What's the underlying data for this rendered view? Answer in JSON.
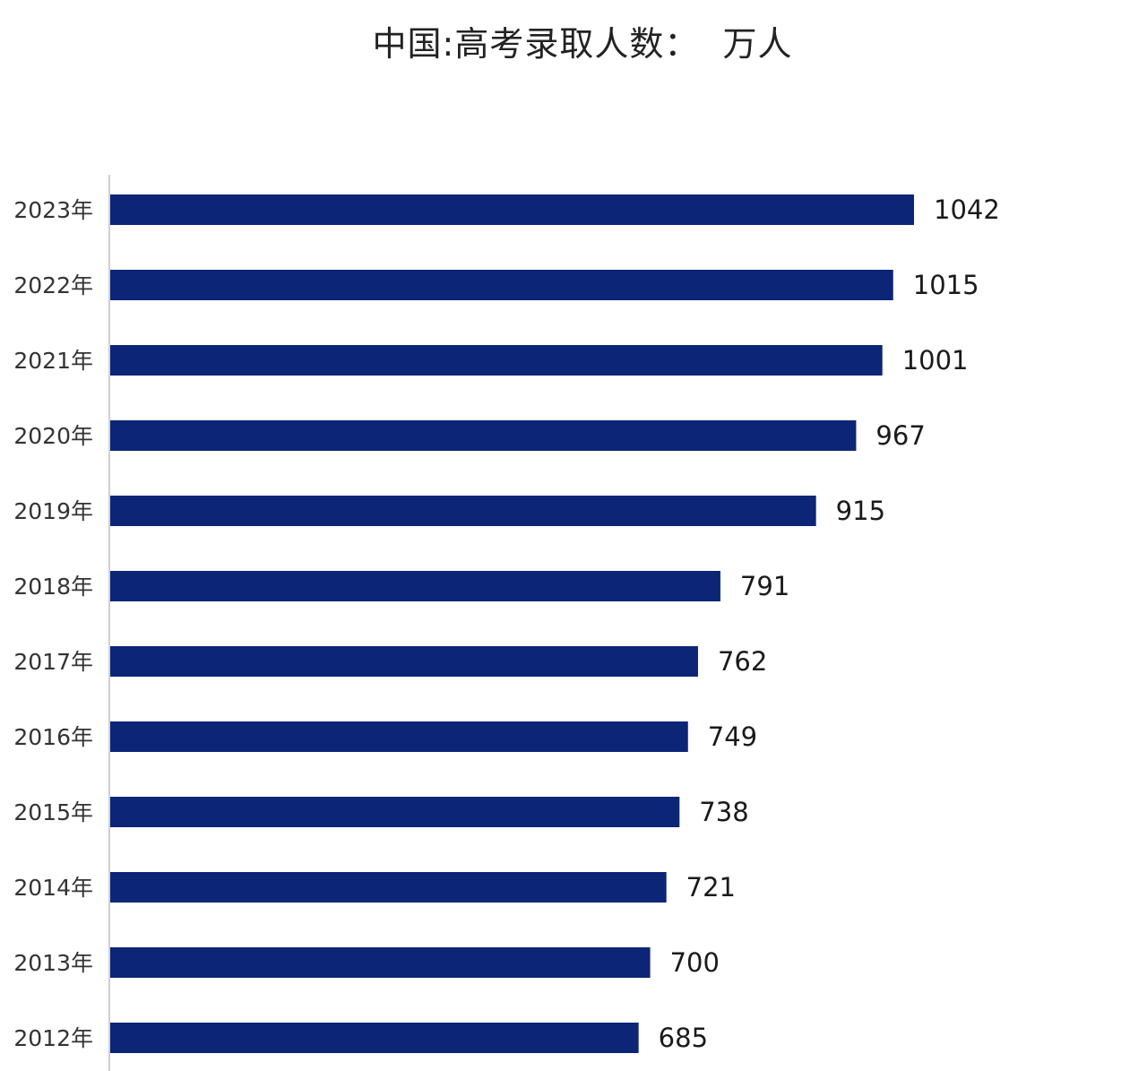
{
  "chart_data": {
    "type": "bar",
    "orientation": "horizontal",
    "title": "中国:高考录取人数：  万人",
    "xlabel": "",
    "ylabel": "",
    "categories": [
      "2023年",
      "2022年",
      "2021年",
      "2020年",
      "2019年",
      "2018年",
      "2017年",
      "2016年",
      "2015年",
      "2014年",
      "2013年",
      "2012年"
    ],
    "values": [
      1042,
      1015,
      1001,
      967,
      915,
      791,
      762,
      749,
      738,
      721,
      700,
      685
    ],
    "data_labels": [
      "1042",
      "1015",
      "1001",
      "967",
      "915",
      "791",
      "762",
      "749",
      "738",
      "721",
      "700",
      "685"
    ],
    "xlim": [
      0,
      1042
    ],
    "grid": false,
    "legend": "none",
    "bar_color": "#0d2577",
    "axis_color": "#d0d0d0"
  }
}
